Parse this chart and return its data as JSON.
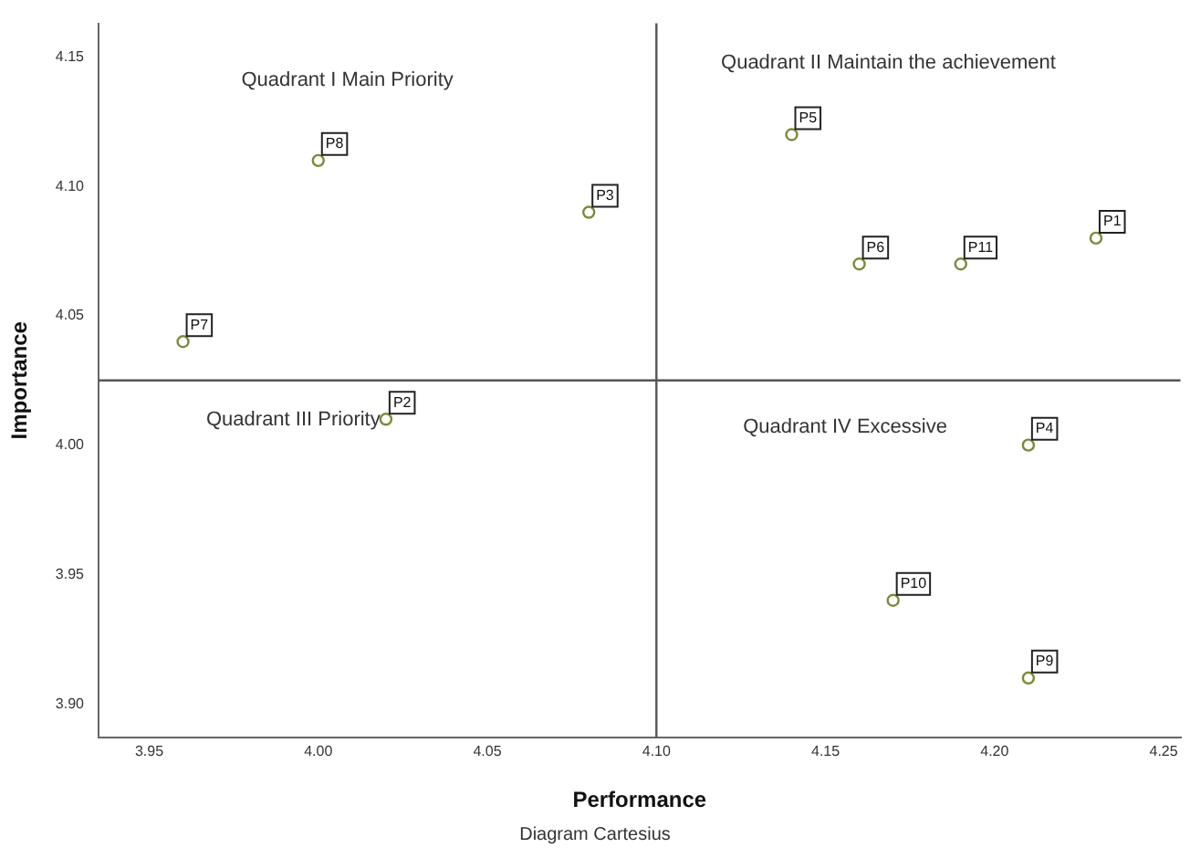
{
  "chart_data": {
    "type": "scatter",
    "xlabel": "Performance",
    "ylabel": "Importance",
    "series": [
      {
        "color": "#7a8a3c",
        "x": [
          4.23,
          4.02,
          4.08,
          4.21,
          4.14,
          4.16,
          3.96,
          4.0,
          4.21,
          4.17,
          4.19
        ],
        "values": [
          4.08,
          4.01,
          4.09,
          4.0,
          4.12,
          4.07,
          4.04,
          4.11,
          3.91,
          3.94,
          4.07
        ]
      }
    ],
    "marker": "circle",
    "grid": false,
    "legend": false,
    "xlim": [
      3.935,
      4.255
    ],
    "xticks": [
      {
        "value": 3.95,
        "label": "3.95"
      },
      {
        "value": 4.0,
        "label": "4.00"
      },
      {
        "value": 4.05,
        "label": "4.05"
      },
      {
        "value": 4.1,
        "label": "4.10"
      },
      {
        "value": 4.15,
        "label": "4.15"
      },
      {
        "value": 4.2,
        "label": "4.20"
      },
      {
        "value": 4.25,
        "label": "4.25"
      }
    ],
    "ylim": [
      3.887,
      4.163
    ],
    "yticks": [
      {
        "value": 3.9,
        "label": "3.90"
      },
      {
        "value": 3.95,
        "label": "3.95"
      },
      {
        "value": 4.0,
        "label": "4.00"
      },
      {
        "value": 4.05,
        "label": "4.05"
      },
      {
        "value": 4.1,
        "label": "4.10"
      },
      {
        "value": 4.15,
        "label": "4.15"
      }
    ],
    "ref_lines": [
      {
        "axis": "x",
        "value": 4.1,
        "color": "#555555"
      },
      {
        "axis": "y",
        "value": 4.025,
        "color": "#555555"
      }
    ],
    "annotations": [
      "Quadrant I Main Priority",
      "Quadrant II Maintain the achievement",
      "Quadrant III Priority",
      "Quadrant IV Excessive",
      "Diagram Cartesius",
      {
        "text": "P1",
        "x": 4.23,
        "y": 4.08
      },
      {
        "text": "P2",
        "x": 4.02,
        "y": 4.01
      },
      {
        "text": "P3",
        "x": 4.08,
        "y": 4.09
      },
      {
        "text": "P4",
        "x": 4.21,
        "y": 4.0
      },
      {
        "text": "P5",
        "x": 4.14,
        "y": 4.12
      },
      {
        "text": "P6",
        "x": 4.16,
        "y": 4.07
      },
      {
        "text": "P7",
        "x": 3.96,
        "y": 4.04
      },
      {
        "text": "P8",
        "x": 4.0,
        "y": 4.11
      },
      {
        "text": "P9",
        "x": 4.21,
        "y": 3.91
      },
      {
        "text": "P10",
        "x": 4.17,
        "y": 3.94
      },
      {
        "text": "P11",
        "x": 4.19,
        "y": 4.07
      }
    ]
  }
}
